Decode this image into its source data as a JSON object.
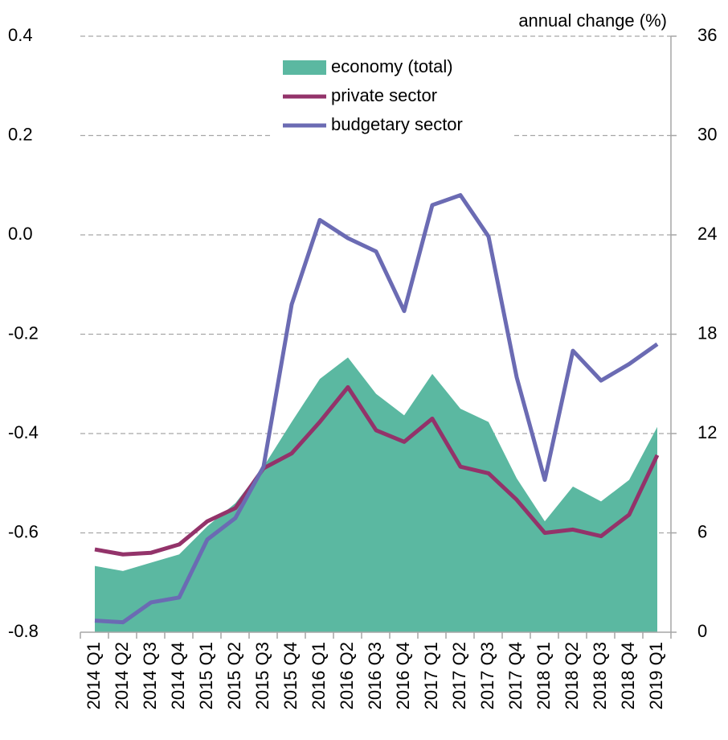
{
  "chart_data": {
    "type": "area-line",
    "annotation": "annual change (%)",
    "categories": [
      "2014 Q1",
      "2014 Q2",
      "2014 Q3",
      "2014 Q4",
      "2015 Q1",
      "2015 Q2",
      "2015 Q3",
      "2015 Q4",
      "2016 Q1",
      "2016 Q2",
      "2016 Q3",
      "2016 Q4",
      "2017 Q1",
      "2017 Q2",
      "2017 Q3",
      "2017 Q4",
      "2018 Q1",
      "2018 Q2",
      "2018 Q3",
      "2018 Q4",
      "2019 Q1"
    ],
    "ylim": [
      -0.8,
      0.4
    ],
    "yticks": [
      -0.8,
      -0.6,
      -0.4,
      -0.2,
      {
        "value": 0,
        "label": "0.0"
      },
      0.2,
      0.4
    ],
    "y2lim": [
      0,
      36
    ],
    "y2ticks": [
      0,
      6,
      12,
      18,
      24,
      30,
      36
    ],
    "grid": true,
    "series": [
      {
        "name": "economy (total)",
        "kind": "area",
        "axis": "y2",
        "color": "#5bb8a1",
        "values": [
          4.0,
          3.7,
          4.2,
          4.7,
          6.4,
          7.8,
          10.0,
          12.7,
          15.3,
          16.6,
          14.4,
          13.1,
          15.6,
          13.5,
          12.7,
          9.3,
          6.7,
          8.8,
          7.9,
          9.2,
          12.4
        ]
      },
      {
        "name": "private sector",
        "kind": "line",
        "axis": "y2",
        "color": "#93336a",
        "values": [
          5.0,
          4.7,
          4.8,
          5.3,
          6.7,
          7.5,
          9.9,
          10.8,
          12.7,
          14.8,
          12.2,
          11.5,
          12.9,
          10.0,
          9.6,
          8.0,
          6.0,
          6.2,
          5.8,
          7.1,
          10.7
        ]
      },
      {
        "name": "budgetary sector",
        "kind": "line",
        "axis": "y2",
        "color": "#6b6bb3",
        "values": [
          0.7,
          0.6,
          1.8,
          2.1,
          5.6,
          6.9,
          10.0,
          19.8,
          24.9,
          23.8,
          23.0,
          19.4,
          25.8,
          26.4,
          23.9,
          15.4,
          9.2,
          17.0,
          15.2,
          16.2,
          17.4
        ]
      }
    ]
  }
}
